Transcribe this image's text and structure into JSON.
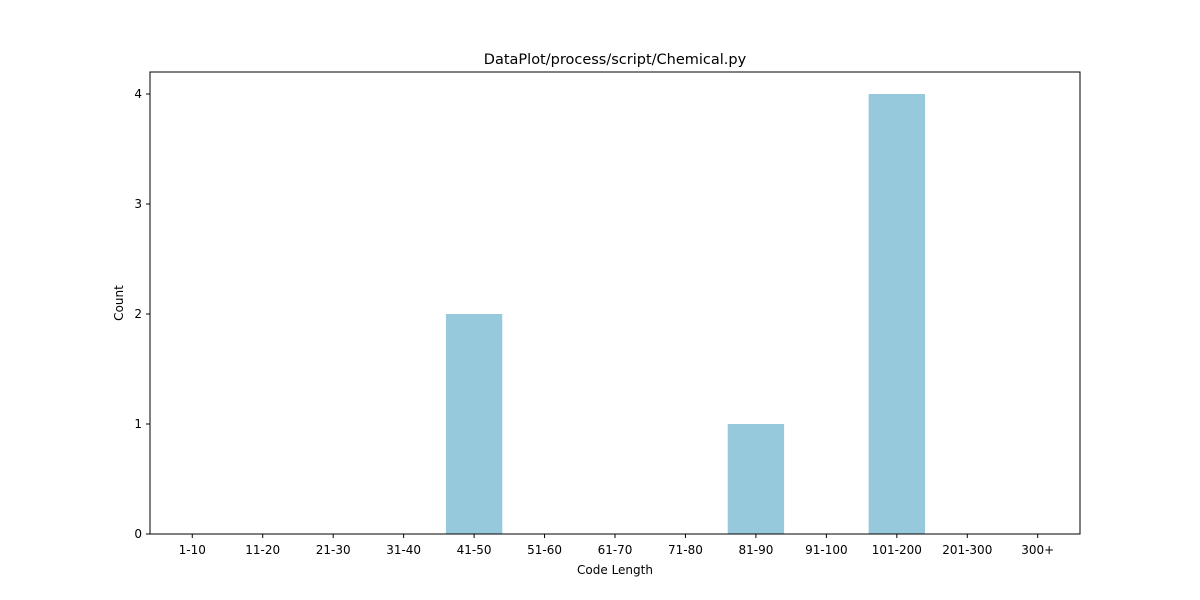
{
  "chart_data": {
    "type": "bar",
    "title": "DataPlot/process/script/Chemical.py",
    "xlabel": "Code Length",
    "ylabel": "Count",
    "categories": [
      "1-10",
      "11-20",
      "21-30",
      "31-40",
      "41-50",
      "51-60",
      "61-70",
      "71-80",
      "81-90",
      "91-100",
      "101-200",
      "201-300",
      "300+"
    ],
    "values": [
      0,
      0,
      0,
      0,
      2,
      0,
      0,
      0,
      1,
      0,
      4,
      0,
      0
    ],
    "ylim": [
      0,
      4.2
    ],
    "yticks": [
      0,
      1,
      2,
      3,
      4
    ],
    "grid": false,
    "bar_color": "#96c9dc"
  }
}
